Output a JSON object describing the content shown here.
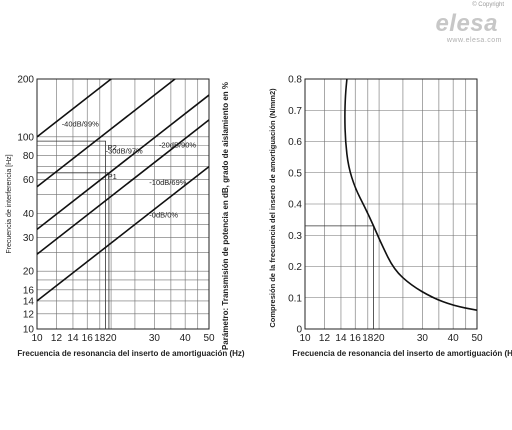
{
  "brand": {
    "copyright": "© Copyright",
    "logo_text": "elesa",
    "website": "www.elesa.com"
  },
  "chart_data": [
    {
      "type": "line",
      "xscale": "log",
      "yscale": "log",
      "xlim": [
        10,
        50
      ],
      "ylim": [
        10,
        200
      ],
      "xticks": [
        10,
        12,
        14,
        16,
        18,
        20,
        30,
        40,
        50
      ],
      "yticks": [
        10,
        12,
        14,
        16,
        20,
        30,
        40,
        60,
        80,
        100,
        200
      ],
      "xlabel": "Frecuencia de resonancia del inserto de amortiguación (Hz)",
      "ylabel": "Frecuencia de interferencia  [Hz]",
      "right_label": "Parámetro: Transmisión de potencia en dB, grado de aislamiento en %",
      "grid": true,
      "series": [
        {
          "name": "-40dB/99%",
          "x": [
            10,
            35
          ],
          "y": [
            100,
            350
          ]
        },
        {
          "name": "-30dB/97%",
          "x": [
            10,
            50
          ],
          "y": [
            55,
            275
          ]
        },
        {
          "name": "-20dB/90%",
          "x": [
            10,
            50
          ],
          "y": [
            33,
            165
          ]
        },
        {
          "name": "-10dB/69%",
          "x": [
            10,
            50
          ],
          "y": [
            24.5,
            122.5
          ]
        },
        {
          "name": "-0dB/0%",
          "x": [
            10,
            50
          ],
          "y": [
            14,
            70
          ]
        }
      ],
      "annotations": [
        {
          "label": "P2",
          "x": 19,
          "y": 95
        },
        {
          "label": "P1",
          "x": 19,
          "y": 65
        }
      ]
    },
    {
      "type": "line",
      "xscale": "log",
      "yscale": "linear",
      "xlim": [
        10,
        50
      ],
      "ylim": [
        0,
        0.8
      ],
      "xticks": [
        10,
        12,
        14,
        16,
        18,
        20,
        30,
        40,
        50
      ],
      "yticks": [
        0,
        0.1,
        0.2,
        0.3,
        0.4,
        0.5,
        0.6,
        0.7,
        0.8
      ],
      "xlabel": "Frecuencia de resonancia del inserto de amortiguación (Hz)",
      "ylabel": "Compresión de la frecuencia del inserto de amortiguación (N/mm2)",
      "grid": true,
      "series": [
        {
          "name": "",
          "x": [
            14.8,
            14.6,
            14.5,
            14.6,
            15.0,
            16.0,
            17.5,
            19.0,
            20.5,
            23.0,
            27.0,
            33.0,
            40.0,
            50.0
          ],
          "y": [
            0.8,
            0.75,
            0.68,
            0.6,
            0.52,
            0.45,
            0.39,
            0.33,
            0.27,
            0.19,
            0.14,
            0.1,
            0.075,
            0.06
          ]
        }
      ],
      "reference": {
        "x": 19,
        "y": 0.33
      }
    }
  ]
}
